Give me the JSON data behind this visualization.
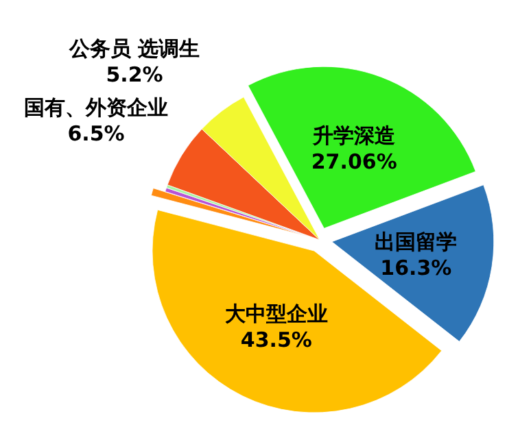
{
  "chart_data": {
    "type": "pie",
    "categories": [
      "升学深造",
      "出国留学",
      "大中型企业",
      null,
      null,
      null,
      "国有、外资企业",
      "公务员 选调生"
    ],
    "values": [
      27.06,
      16.3,
      43.5,
      0.74,
      0.4,
      0.3,
      6.5,
      5.2
    ],
    "value_labels": [
      "27.06%",
      "16.3%",
      "43.5%",
      null,
      null,
      null,
      "6.5%",
      "5.2%"
    ],
    "colors": [
      "#33ee1e",
      "#2e75b6",
      "#ffc000",
      "#ff8c12",
      "#b653d6",
      "#a9f5a5",
      "#f4561c",
      "#f2f830"
    ]
  }
}
